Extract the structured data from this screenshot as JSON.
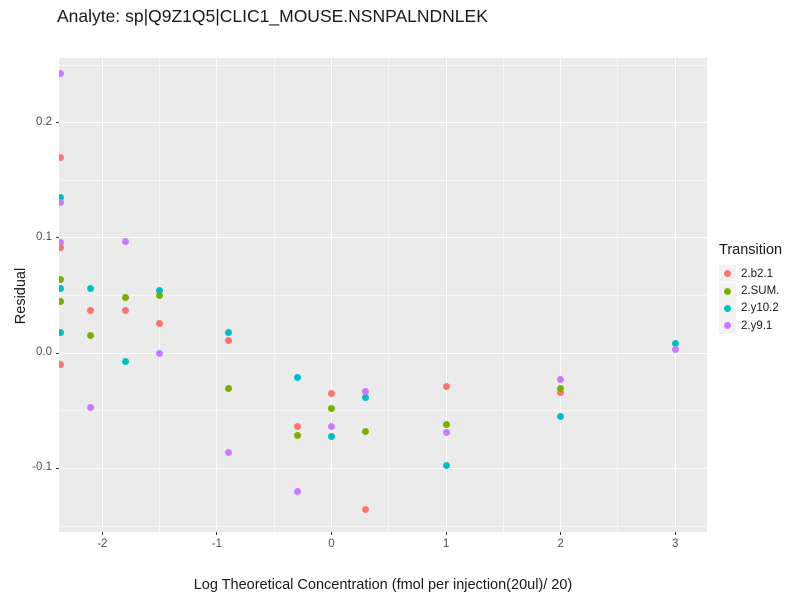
{
  "chart_data": {
    "type": "scatter",
    "title": "Analyte: sp|Q9Z1Q5|CLIC1_MOUSE.NSNPALNDNLEK",
    "xlabel": "Log Theoretical Concentration (fmol per injection(20ul)/ 20)",
    "ylabel": "Residual",
    "legend_title": "Transition",
    "legend_position": "right",
    "grid": "on",
    "panel_background": "#EBEBEB",
    "gridline_color": "#ffffff",
    "tick_label_color": "#4D4D4D",
    "xlim": [
      -2.378,
      3.277
    ],
    "ylim": [
      -0.1551,
      0.2561
    ],
    "x_ticks": [
      {
        "v": -2,
        "label": "-2"
      },
      {
        "v": -1,
        "label": "-1"
      },
      {
        "v": 0,
        "label": "0"
      },
      {
        "v": 1,
        "label": "1"
      },
      {
        "v": 2,
        "label": "2"
      },
      {
        "v": 3,
        "label": "3"
      }
    ],
    "y_ticks": [
      {
        "v": 0.2,
        "label": "0.2"
      },
      {
        "v": 0.1,
        "label": "0.1"
      },
      {
        "v": 0.0,
        "label": "0.0"
      },
      {
        "v": -0.1,
        "label": "-0.1"
      }
    ],
    "x_minor_ticks": [
      -1.5,
      -0.5,
      0.5,
      1.5,
      2.5
    ],
    "y_minor_ticks": [
      0.25,
      0.15,
      0.05,
      -0.05,
      -0.15
    ],
    "series": [
      {
        "name": "2.b2.1",
        "color": "#F8766D",
        "points": [
          [
            -2.365,
            0.17
          ],
          [
            -2.365,
            0.092
          ],
          [
            -2.365,
            -0.01
          ],
          [
            -2.1,
            0.037
          ],
          [
            -1.8,
            0.037
          ],
          [
            -1.5,
            0.026
          ],
          [
            -0.9,
            0.011
          ],
          [
            -0.3,
            -0.064
          ],
          [
            0.0,
            -0.035
          ],
          [
            0.3,
            -0.136
          ],
          [
            1.0,
            -0.029
          ],
          [
            2.0,
            -0.034
          ]
        ]
      },
      {
        "name": "2.SUM.",
        "color": "#7CAE00",
        "points": [
          [
            -2.365,
            0.064
          ],
          [
            -2.365,
            0.045
          ],
          [
            -2.1,
            0.015
          ],
          [
            -1.8,
            0.048
          ],
          [
            -1.5,
            0.05
          ],
          [
            -0.9,
            -0.031
          ],
          [
            -0.3,
            -0.071
          ],
          [
            0.0,
            -0.048
          ],
          [
            0.3,
            -0.068
          ],
          [
            1.0,
            -0.062
          ],
          [
            2.0,
            -0.031
          ]
        ]
      },
      {
        "name": "2.y10.2",
        "color": "#00BFC4",
        "points": [
          [
            -2.365,
            0.135
          ],
          [
            -2.365,
            0.056
          ],
          [
            -2.365,
            0.018
          ],
          [
            -2.1,
            0.056
          ],
          [
            -1.8,
            -0.007
          ],
          [
            -1.5,
            0.054
          ],
          [
            -0.9,
            0.018
          ],
          [
            -0.3,
            -0.021
          ],
          [
            0.0,
            -0.072
          ],
          [
            0.3,
            -0.038
          ],
          [
            1.0,
            -0.097
          ],
          [
            2.0,
            -0.055
          ],
          [
            3.0,
            0.008
          ]
        ]
      },
      {
        "name": "2.y9.1",
        "color": "#C77CFF",
        "points": [
          [
            -2.365,
            0.243
          ],
          [
            -2.365,
            0.131
          ],
          [
            -2.365,
            0.096
          ],
          [
            -2.1,
            -0.047
          ],
          [
            -1.8,
            0.097
          ],
          [
            -1.5,
            0.0
          ],
          [
            -0.9,
            -0.086
          ],
          [
            -0.3,
            -0.12
          ],
          [
            0.0,
            -0.064
          ],
          [
            0.3,
            -0.033
          ],
          [
            1.0,
            -0.069
          ],
          [
            2.0,
            -0.023
          ],
          [
            3.0,
            0.003
          ]
        ]
      }
    ]
  }
}
